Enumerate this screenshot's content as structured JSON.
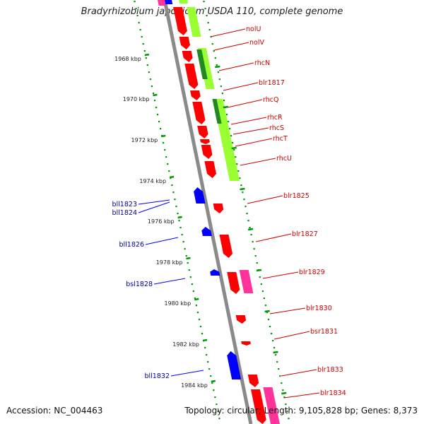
{
  "title": "Bradyrhizobium japonicum USDA 110, complete genome",
  "footer": {
    "accession": "Accession: NC_004463",
    "summary": "Topology: circular; Length: 9,105,828 bp; Genes: 8,373"
  },
  "colors": {
    "backbone": "#8a8a8a",
    "forward_gene": "#ff0000",
    "reverse_gene": "#0000ff",
    "pseudo_pink": "#ff3399",
    "cds_light_green": "#99ff33",
    "cds_dark_green": "#228822",
    "ticks": "#009900",
    "forward_label": "#cc0000",
    "reverse_label": "#000099"
  },
  "kbp_ticks": [
    "1968 kbp",
    "1970 kbp",
    "1972 kbp",
    "1974 kbp",
    "1976 kbp",
    "1978 kbp",
    "1980 kbp",
    "1982 kbp",
    "1984 kbp"
  ],
  "forward_labels": [
    "nolU",
    "nolV",
    "rhcN",
    "blr1817",
    "rhcQ",
    "rhcR",
    "rhcS",
    "rhcT",
    "rhcU",
    "blr1825",
    "blr1827",
    "blr1829",
    "blr1830",
    "bsr1831",
    "blr1833",
    "blr1834"
  ],
  "reverse_labels": [
    "bll1823",
    "bll1824",
    "bll1826",
    "bsl1828",
    "bll1832"
  ]
}
